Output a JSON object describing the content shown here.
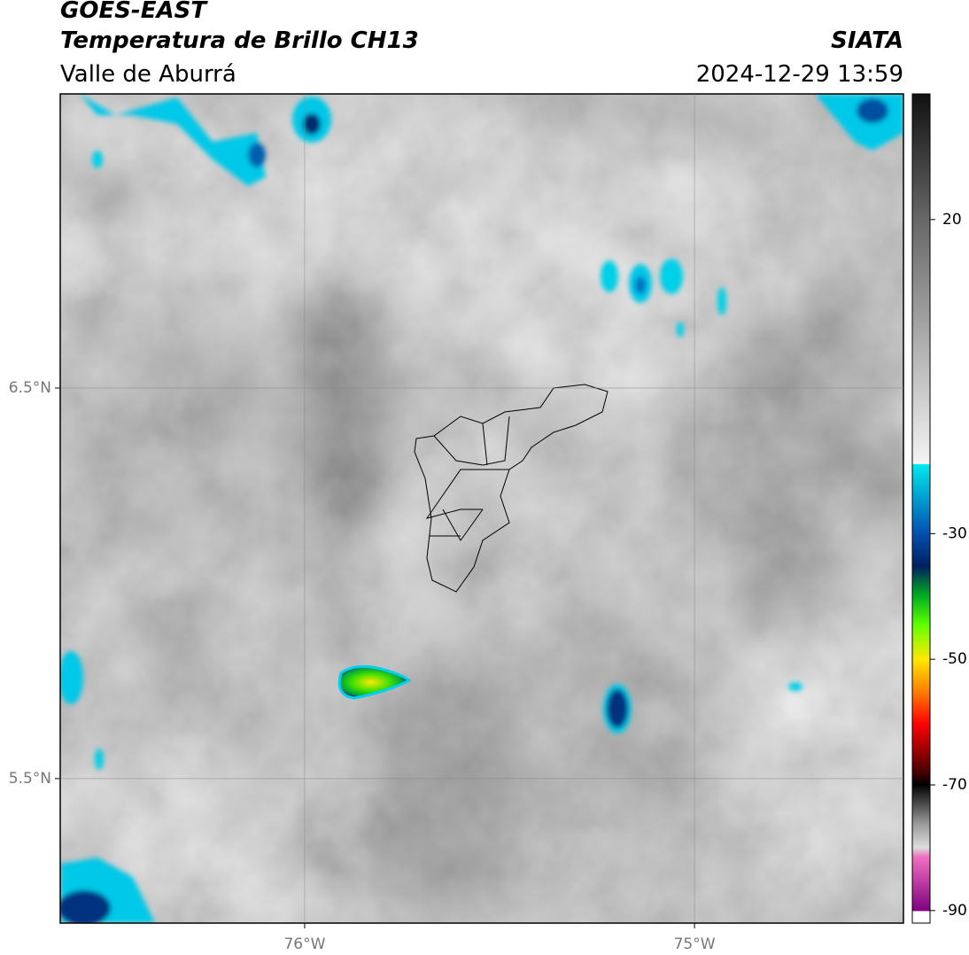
{
  "header": {
    "title": "GOES-EAST",
    "subtitle": "Temperatura de Brillo CH13",
    "source": "SIATA",
    "region": "Valle de Aburrá",
    "timestamp": "2024-12-29 13:59"
  },
  "map": {
    "xlim": [
      -76.627,
      -74.464
    ],
    "ylim": [
      5.13,
      7.253
    ],
    "xticks": [
      {
        "value": -76,
        "label": "76°W"
      },
      {
        "value": -75,
        "label": "75°W"
      }
    ],
    "yticks": [
      {
        "value": 6.5,
        "label": "6.5°N"
      },
      {
        "value": 5.5,
        "label": "5.5°N"
      }
    ],
    "grid": true
  },
  "colorbar": {
    "lim": [
      -92,
      40
    ],
    "ticks": [
      20,
      -30,
      -50,
      -70,
      -90
    ]
  }
}
